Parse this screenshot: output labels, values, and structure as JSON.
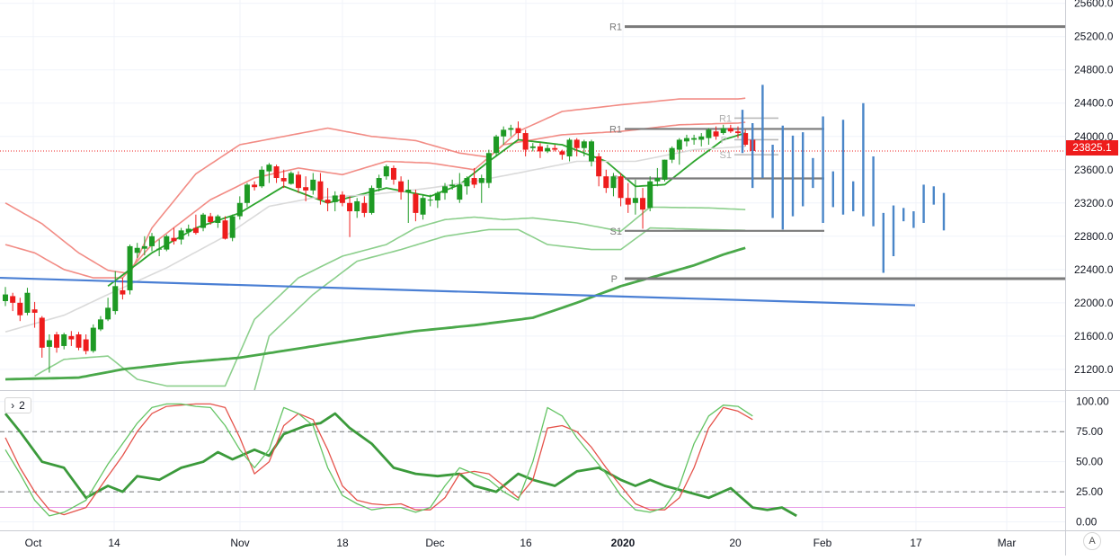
{
  "chart_data": {
    "type": "candlestick",
    "instrument_last_price": "23825.1",
    "x_tick_labels": [
      "Oct",
      "14",
      "Nov",
      "18",
      "Dec",
      "16",
      "2020",
      "20",
      "Feb",
      "17",
      "Mar"
    ],
    "price_axis": {
      "ticks": [
        "25600.0",
        "25200.0",
        "24800.0",
        "24400.0",
        "24000.0",
        "23600.0",
        "23200.0",
        "22800.0",
        "22400.0",
        "22000.0",
        "21600.0",
        "21200.0"
      ],
      "range": [
        20950,
        25640
      ]
    },
    "oscillator_axis": {
      "ticks": [
        "100.00",
        "75.00",
        "50.00",
        "25.00",
        "0.00"
      ],
      "range": [
        -7,
        108
      ],
      "levels": [
        75,
        25,
        12
      ]
    },
    "pane_legend_label": "2",
    "pivot_labels": {
      "left": {
        "r1": "R1",
        "p": "P",
        "s1": "S1"
      },
      "main": {
        "r1": "R1",
        "p": "P",
        "s1": "S1"
      },
      "small": {
        "r1": "R1",
        "p": "P",
        "s1": "S1"
      }
    },
    "pivot_levels": {
      "main": {
        "r1": 24090,
        "p": 23495,
        "s1": 22865
      },
      "monthly": {
        "r1": 25320,
        "p": 22290
      },
      "small": {
        "r1": 24220,
        "p": 23960,
        "s1": 23780
      }
    },
    "colors": {
      "up": "#1e9a24",
      "down": "#ee1c1c",
      "trend": "#4a7fd4",
      "forecast": "#4a86c8",
      "pivot": "#7a7a7a",
      "band_upper": "#f28c85",
      "band_green": "#8ccf8c",
      "ma_light": "#dadada",
      "ma_green": "#4aa84a"
    },
    "candles": [
      [
        22020,
        22190,
        21960,
        22100
      ],
      [
        22080,
        22120,
        21900,
        22000
      ],
      [
        22000,
        22060,
        21780,
        21850
      ],
      [
        21880,
        22180,
        21850,
        22120
      ],
      [
        21920,
        22010,
        21700,
        21880
      ],
      [
        21820,
        21840,
        21340,
        21460
      ],
      [
        21470,
        21620,
        21160,
        21550
      ],
      [
        21620,
        21650,
        21400,
        21460
      ],
      [
        21480,
        21640,
        21440,
        21620
      ],
      [
        21600,
        21660,
        21480,
        21560
      ],
      [
        21620,
        21650,
        21430,
        21460
      ],
      [
        21560,
        21620,
        21380,
        21420
      ],
      [
        21420,
        21740,
        21400,
        21700
      ],
      [
        21680,
        21840,
        21660,
        21800
      ],
      [
        21800,
        22060,
        21780,
        21940
      ],
      [
        21900,
        22380,
        21860,
        22200
      ],
      [
        22150,
        22300,
        22040,
        22100
      ],
      [
        22150,
        22700,
        22100,
        22680
      ],
      [
        22600,
        22720,
        22540,
        22660
      ],
      [
        22650,
        22800,
        22570,
        22680
      ],
      [
        22680,
        22840,
        22620,
        22800
      ],
      [
        22640,
        22760,
        22560,
        22650
      ],
      [
        22640,
        22820,
        22620,
        22800
      ],
      [
        22780,
        22900,
        22700,
        22740
      ],
      [
        22760,
        22900,
        22700,
        22870
      ],
      [
        22850,
        22940,
        22800,
        22890
      ],
      [
        22900,
        23060,
        22820,
        22840
      ],
      [
        22900,
        23080,
        22860,
        23060
      ],
      [
        23040,
        23080,
        22940,
        22970
      ],
      [
        22960,
        23060,
        22900,
        23040
      ],
      [
        22990,
        23040,
        22760,
        22770
      ],
      [
        22780,
        23060,
        22740,
        23040
      ],
      [
        23040,
        23280,
        23000,
        23200
      ],
      [
        23200,
        23440,
        23150,
        23420
      ],
      [
        23420,
        23460,
        23350,
        23390
      ],
      [
        23400,
        23640,
        23380,
        23600
      ],
      [
        23580,
        23680,
        23440,
        23660
      ],
      [
        23640,
        23660,
        23440,
        23500
      ],
      [
        23500,
        23600,
        23380,
        23460
      ],
      [
        23430,
        23580,
        23420,
        23560
      ],
      [
        23540,
        23580,
        23320,
        23380
      ],
      [
        23390,
        23520,
        23220,
        23350
      ],
      [
        23350,
        23560,
        23300,
        23480
      ],
      [
        23460,
        23560,
        23180,
        23240
      ],
      [
        23240,
        23380,
        23100,
        23200
      ],
      [
        23210,
        23340,
        23100,
        23290
      ],
      [
        23300,
        23340,
        23160,
        23200
      ],
      [
        23200,
        23280,
        22790,
        23100
      ],
      [
        23100,
        23260,
        23020,
        23220
      ],
      [
        23200,
        23280,
        23030,
        23080
      ],
      [
        23080,
        23410,
        23060,
        23380
      ],
      [
        23380,
        23540,
        23340,
        23500
      ],
      [
        23520,
        23660,
        23480,
        23640
      ],
      [
        23620,
        23650,
        23420,
        23480
      ],
      [
        23460,
        23520,
        23240,
        23330
      ],
      [
        23330,
        23480,
        22960,
        23360
      ],
      [
        23310,
        23360,
        22980,
        23080
      ],
      [
        23060,
        23300,
        23000,
        23260
      ],
      [
        23240,
        23300,
        23160,
        23240
      ],
      [
        23230,
        23340,
        23140,
        23320
      ],
      [
        23320,
        23440,
        23240,
        23400
      ],
      [
        23400,
        23480,
        23360,
        23420
      ],
      [
        23240,
        23560,
        23200,
        23420
      ],
      [
        23400,
        23520,
        23300,
        23500
      ],
      [
        23500,
        23620,
        23380,
        23420
      ],
      [
        23440,
        23540,
        23200,
        23500
      ],
      [
        23440,
        23840,
        23380,
        23800
      ],
      [
        23800,
        24020,
        23760,
        24000
      ],
      [
        24000,
        24120,
        23900,
        24080
      ],
      [
        24080,
        24140,
        24000,
        24100
      ],
      [
        24100,
        24180,
        23960,
        24040
      ],
      [
        24040,
        24080,
        23760,
        23840
      ],
      [
        23860,
        23920,
        23820,
        23880
      ],
      [
        23880,
        23920,
        23740,
        23820
      ],
      [
        23820,
        23900,
        23800,
        23860
      ],
      [
        23860,
        23900,
        23820,
        23840
      ],
      [
        23820,
        23840,
        23720,
        23780
      ],
      [
        23760,
        23980,
        23700,
        23960
      ],
      [
        23960,
        23980,
        23760,
        23860
      ],
      [
        23860,
        23960,
        23760,
        23940
      ],
      [
        23700,
        23960,
        23640,
        23940
      ],
      [
        23760,
        23800,
        23400,
        23520
      ],
      [
        23520,
        23600,
        23320,
        23380
      ],
      [
        23380,
        23560,
        23280,
        23520
      ],
      [
        23520,
        23560,
        23160,
        23260
      ],
      [
        23260,
        23440,
        23080,
        23180
      ],
      [
        23200,
        23480,
        23060,
        23260
      ],
      [
        23260,
        23380,
        22890,
        23120
      ],
      [
        23140,
        23520,
        23100,
        23460
      ],
      [
        23460,
        23620,
        23400,
        23500
      ],
      [
        23480,
        23720,
        23460,
        23720
      ],
      [
        23720,
        23880,
        23680,
        23860
      ],
      [
        23840,
        23980,
        23660,
        23960
      ],
      [
        23940,
        24020,
        23880,
        23980
      ],
      [
        23960,
        24020,
        23900,
        23980
      ],
      [
        23960,
        24040,
        23880,
        24000
      ],
      [
        23980,
        24100,
        23900,
        24080
      ],
      [
        24060,
        24120,
        23960,
        24000
      ],
      [
        24040,
        24140,
        24020,
        24100
      ],
      [
        24100,
        24140,
        24040,
        24060
      ],
      [
        24060,
        24120,
        23980,
        24040
      ],
      [
        24040,
        24080,
        23880,
        23900
      ],
      [
        23960,
        24080,
        23740,
        23825.1
      ]
    ],
    "forecast_bars": [
      [
        23800,
        24320
      ],
      [
        23380,
        24160
      ],
      [
        23500,
        24620
      ],
      [
        23020,
        23900
      ],
      [
        22880,
        24130
      ],
      [
        23040,
        24010
      ],
      [
        23160,
        24050
      ],
      [
        23380,
        23740
      ],
      [
        22960,
        24240
      ],
      [
        23150,
        23580
      ],
      [
        23060,
        24200
      ],
      [
        23100,
        23460
      ],
      [
        23040,
        24400
      ],
      [
        22920,
        23760
      ],
      [
        22360,
        23080
      ],
      [
        22560,
        23170
      ],
      [
        22980,
        23140
      ],
      [
        22900,
        23100
      ],
      [
        22960,
        23420
      ],
      [
        23180,
        23400
      ],
      [
        22870,
        23320
      ]
    ]
  }
}
